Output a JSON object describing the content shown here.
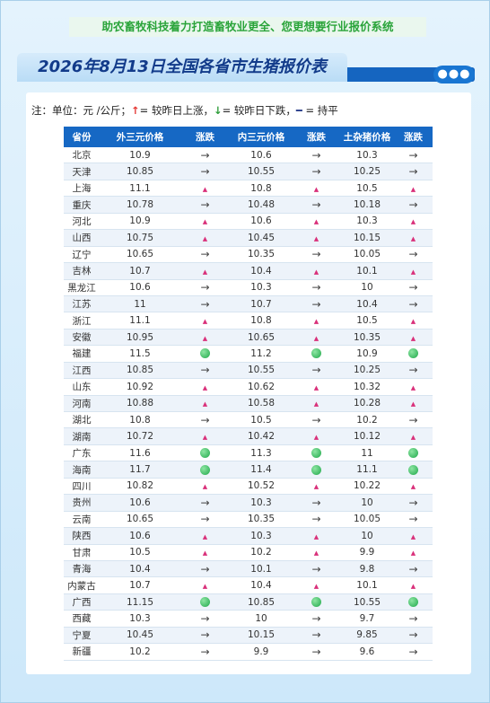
{
  "header": {
    "slogan": "助农畜牧科技着力打造畜牧业更全、您更想要行业报价系统",
    "title": "2026年8月13日全国各省市生猪报价表"
  },
  "note": [
    "注：单位：元 /公斤；",
    "↑",
    "= 较昨日上涨，",
    "↓",
    "= 较昨日下跌，",
    "━",
    " = 持平"
  ],
  "table": {
    "columns": [
      "省份",
      "外三元价格",
      "涨跌",
      "内三元价格",
      "涨跌",
      "土杂猪价格",
      "涨跌"
    ],
    "rows": [
      [
        "北京",
        10.9,
        "→",
        10.6,
        "→",
        10.3,
        "→"
      ],
      [
        "天津",
        10.85,
        "→",
        10.55,
        "→",
        10.25,
        "→"
      ],
      [
        "上海",
        11.1,
        "▲",
        10.8,
        "▲",
        10.5,
        "▲"
      ],
      [
        "重庆",
        10.78,
        "→",
        10.48,
        "→",
        10.18,
        "→"
      ],
      [
        "河北",
        10.9,
        "▲",
        10.6,
        "▲",
        10.3,
        "▲"
      ],
      [
        "山西",
        10.75,
        "▲",
        10.45,
        "▲",
        10.15,
        "▲"
      ],
      [
        "辽宁",
        10.65,
        "→",
        10.35,
        "→",
        10.05,
        "→"
      ],
      [
        "吉林",
        10.7,
        "▲",
        10.4,
        "▲",
        10.1,
        "▲"
      ],
      [
        "黑龙江",
        10.6,
        "→",
        10.3,
        "→",
        10,
        "→"
      ],
      [
        "江苏",
        11,
        "→",
        10.7,
        "→",
        10.4,
        "→"
      ],
      [
        "浙江",
        11.1,
        "▲",
        10.8,
        "▲",
        10.5,
        "▲"
      ],
      [
        "安徽",
        10.95,
        "▲",
        10.65,
        "▲",
        10.35,
        "▲"
      ],
      [
        "福建",
        11.5,
        "●",
        11.2,
        "●",
        10.9,
        "●"
      ],
      [
        "江西",
        10.85,
        "→",
        10.55,
        "→",
        10.25,
        "→"
      ],
      [
        "山东",
        10.92,
        "▲",
        10.62,
        "▲",
        10.32,
        "▲"
      ],
      [
        "河南",
        10.88,
        "▲",
        10.58,
        "▲",
        10.28,
        "▲"
      ],
      [
        "湖北",
        10.8,
        "→",
        10.5,
        "→",
        10.2,
        "→"
      ],
      [
        "湖南",
        10.72,
        "▲",
        10.42,
        "▲",
        10.12,
        "▲"
      ],
      [
        "广东",
        11.6,
        "●",
        11.3,
        "●",
        11,
        "●"
      ],
      [
        "海南",
        11.7,
        "●",
        11.4,
        "●",
        11.1,
        "●"
      ],
      [
        "四川",
        10.82,
        "▲",
        10.52,
        "▲",
        10.22,
        "▲"
      ],
      [
        "贵州",
        10.6,
        "→",
        10.3,
        "→",
        10,
        "→"
      ],
      [
        "云南",
        10.65,
        "→",
        10.35,
        "→",
        10.05,
        "→"
      ],
      [
        "陕西",
        10.6,
        "▲",
        10.3,
        "▲",
        10,
        "▲"
      ],
      [
        "甘肃",
        10.5,
        "▲",
        10.2,
        "▲",
        9.9,
        "▲"
      ],
      [
        "青海",
        10.4,
        "→",
        10.1,
        "→",
        9.8,
        "→"
      ],
      [
        "内蒙古",
        10.7,
        "▲",
        10.4,
        "▲",
        10.1,
        "▲"
      ],
      [
        "广西",
        11.15,
        "●",
        10.85,
        "●",
        10.55,
        "●"
      ],
      [
        "西藏",
        10.3,
        "→",
        10,
        "→",
        9.7,
        "→"
      ],
      [
        "宁夏",
        10.45,
        "→",
        10.15,
        "→",
        9.85,
        "→"
      ],
      [
        "新疆",
        10.2,
        "→",
        9.9,
        "→",
        9.6,
        "→"
      ]
    ]
  }
}
